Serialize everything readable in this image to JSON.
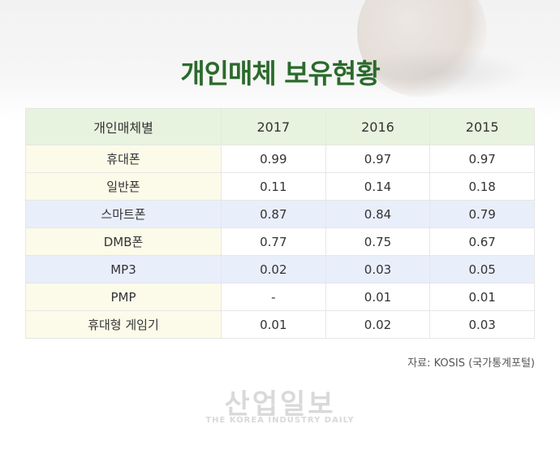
{
  "title": "개인매체 보유현황",
  "table": {
    "headers": [
      "개인매체별",
      "2017",
      "2016",
      "2015"
    ],
    "rows": [
      {
        "label": "휴대폰",
        "values": [
          "0.99",
          "0.97",
          "0.97"
        ]
      },
      {
        "label": "일반폰",
        "values": [
          "0.11",
          "0.14",
          "0.18"
        ]
      },
      {
        "label": "스마트폰",
        "values": [
          "0.87",
          "0.84",
          "0.79"
        ]
      },
      {
        "label": "DMB폰",
        "values": [
          "0.77",
          "0.75",
          "0.67"
        ]
      },
      {
        "label": "MP3",
        "values": [
          "0.02",
          "0.03",
          "0.05"
        ]
      },
      {
        "label": "PMP",
        "values": [
          "-",
          "0.01",
          "0.01"
        ]
      },
      {
        "label": "휴대형 게임기",
        "values": [
          "0.01",
          "0.02",
          "0.03"
        ]
      }
    ]
  },
  "source": "자료: KOSIS (국가통계포털)",
  "watermark": {
    "name": "산업일보",
    "tagline": "THE KOREA INDUSTRY DAILY"
  },
  "colors": {
    "title": "#2b6a2c",
    "header_bg": "#e7f3df",
    "label_bg": "#fcfbe9",
    "highlight_row_bg": "#e9eefb"
  }
}
